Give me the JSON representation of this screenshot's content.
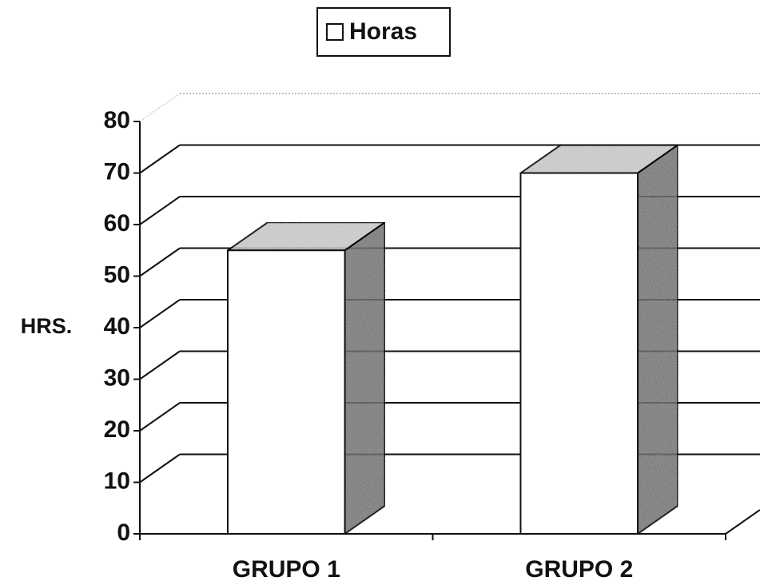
{
  "chart_data": {
    "type": "bar",
    "categories": [
      "GRUPO 1",
      "GRUPO 2"
    ],
    "series": [
      {
        "name": "Horas",
        "color": "#ffffff",
        "values": [
          55,
          70
        ]
      }
    ],
    "ylim": [
      0,
      80
    ],
    "yticks": [
      0,
      10,
      20,
      30,
      40,
      50,
      60,
      70,
      80
    ],
    "y_axis_label": "HRS.",
    "grid": true,
    "legend": "top"
  }
}
